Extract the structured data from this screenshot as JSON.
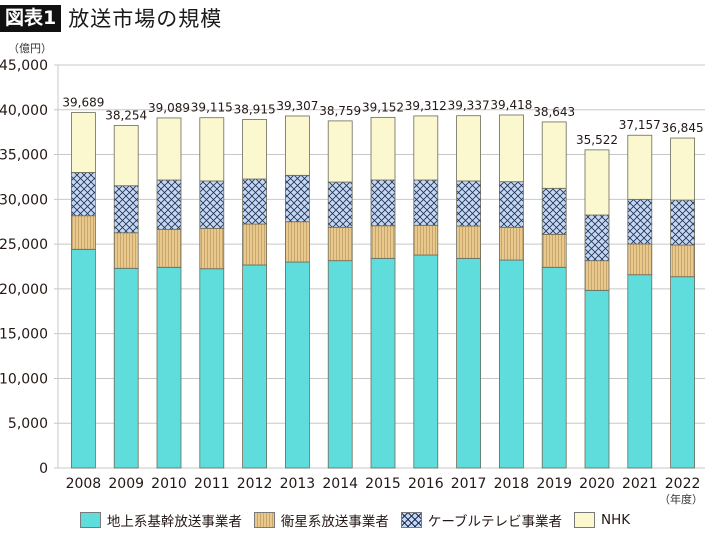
{
  "header": {
    "badge": "図表1",
    "title": "放送市場の規模"
  },
  "units": {
    "y": "（億円）",
    "x": "（年度）"
  },
  "colors": {
    "terrestrial": "#5fdcdc",
    "satellite": "#e8c88c",
    "satellite_stripe": "#c9a66b",
    "cable": "#c5d8f2",
    "cable_hatch": "#1f2f55",
    "nhk": "#fbf7cf",
    "bar_outline": "#6b6b5a",
    "grid": "#c8c8c8"
  },
  "chart_data": {
    "type": "bar",
    "stacked": true,
    "title": "放送市場の規模",
    "xlabel": "（年度）",
    "ylabel": "（億円）",
    "ylim": [
      0,
      45000
    ],
    "yticks": [
      0,
      5000,
      10000,
      15000,
      20000,
      25000,
      30000,
      35000,
      40000,
      45000
    ],
    "ytick_labels": [
      "0",
      "5,000",
      "10,000",
      "15,000",
      "20,000",
      "25,000",
      "30,000",
      "35,000",
      "40,000",
      "45,000"
    ],
    "grid": true,
    "legend_position": "bottom",
    "categories": [
      "2008",
      "2009",
      "2010",
      "2011",
      "2012",
      "2013",
      "2014",
      "2015",
      "2016",
      "2017",
      "2018",
      "2019",
      "2020",
      "2021",
      "2022"
    ],
    "series": [
      {
        "key": "terrestrial",
        "name": "地上系基幹放送事業者",
        "values": [
          24420,
          22300,
          22410,
          22250,
          22670,
          23000,
          23150,
          23410,
          23780,
          23410,
          23220,
          22410,
          19840,
          21580,
          21360
        ]
      },
      {
        "key": "satellite",
        "name": "衛星系放送事業者",
        "values": [
          3750,
          3970,
          4240,
          4510,
          4570,
          4500,
          3730,
          3640,
          3320,
          3610,
          3660,
          3680,
          3310,
          3430,
          3540
        ]
      },
      {
        "key": "cable",
        "name": "ケーブルテレビ事業者",
        "values": [
          4830,
          5250,
          5510,
          5290,
          5030,
          5180,
          5050,
          5110,
          5060,
          5030,
          5090,
          5140,
          5100,
          4990,
          5020
        ]
      },
      {
        "key": "nhk",
        "name": "NHK",
        "values": [
          6689,
          6734,
          6929,
          7065,
          6645,
          6627,
          6829,
          6992,
          7152,
          7287,
          7448,
          7413,
          7272,
          7157,
          6925
        ]
      }
    ],
    "totals": [
      39689,
      38254,
      39089,
      39115,
      38915,
      39307,
      38759,
      39152,
      39312,
      39337,
      39418,
      38643,
      35522,
      37157,
      36845
    ],
    "total_labels": [
      "39,689",
      "38,254",
      "39,089",
      "39,115",
      "38,915",
      "39,307",
      "38,759",
      "39,152",
      "39,312",
      "39,337",
      "39,418",
      "38,643",
      "35,522",
      "37,157",
      "36,845"
    ]
  },
  "legend": [
    {
      "key": "terrestrial",
      "label": "地上系基幹放送事業者"
    },
    {
      "key": "satellite",
      "label": "衛星系放送事業者"
    },
    {
      "key": "cable",
      "label": "ケーブルテレビ事業者"
    },
    {
      "key": "nhk",
      "label": "NHK"
    }
  ]
}
